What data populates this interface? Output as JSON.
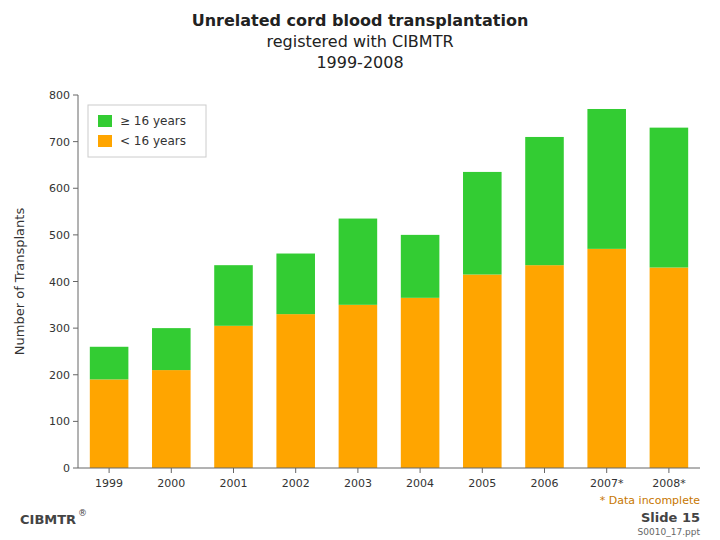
{
  "chart_data": {
    "type": "bar",
    "stacked": true,
    "title": [
      "Unrelated cord blood transplantation",
      "registered with CIBMTR",
      "1999-2008"
    ],
    "y_label": "Number of Transplants",
    "categories": [
      "1999",
      "2000",
      "2001",
      "2002",
      "2003",
      "2004",
      "2005",
      "2006",
      "2007*",
      "2008*"
    ],
    "series": [
      {
        "name": "< 16 years",
        "color": "#FFA500",
        "values": [
          190,
          210,
          305,
          330,
          350,
          365,
          415,
          435,
          470,
          430
        ]
      },
      {
        "name": "≥ 16 years",
        "color": "#33CC33",
        "values": [
          70,
          90,
          130,
          130,
          185,
          135,
          220,
          275,
          300,
          300
        ]
      }
    ],
    "ylim": [
      0,
      800
    ],
    "yticks": [
      0,
      100,
      200,
      300,
      400,
      500,
      600,
      700,
      800
    ],
    "grid": false,
    "legend": "upper left",
    "annotations": [
      "* Data incomplete",
      "Slide 15",
      "S0010_17.ppt",
      "CIBMTR",
      "®"
    ]
  }
}
